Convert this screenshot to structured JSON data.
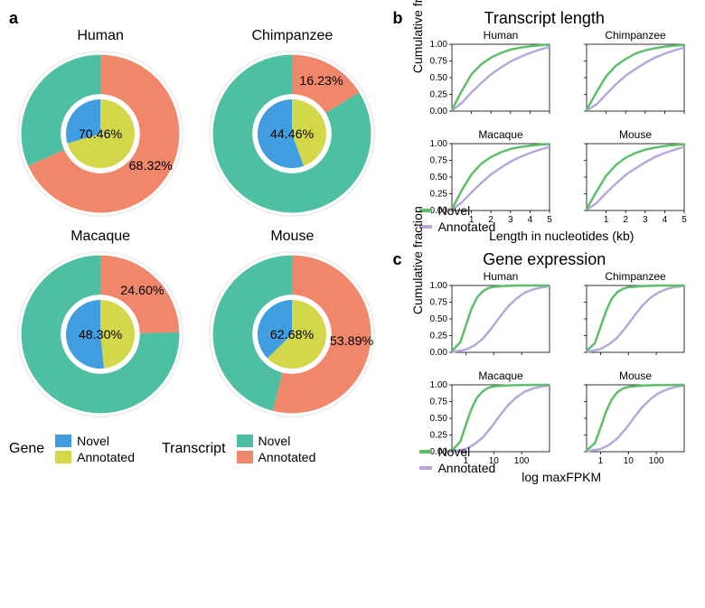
{
  "colors": {
    "gene_novel": "#3f9de0",
    "gene_annotated": "#d3d84a",
    "transcript_novel": "#4fbfa2",
    "transcript_annotated": "#f0866a",
    "novel_line": "#5dbf6a",
    "annotated_line": "#b8a8d6",
    "axis": "#000000",
    "grid": "#e0e0e0",
    "ring": "#eeeeee"
  },
  "panel_a": {
    "label": "a",
    "species": [
      {
        "name": "Human",
        "gene_annotated_pct": 70.46,
        "transcript_annotated_pct": 68.32,
        "outer_label": "68.32%",
        "inner_label": "70.46%"
      },
      {
        "name": "Chimpanzee",
        "gene_annotated_pct": 44.46,
        "transcript_annotated_pct": 16.23,
        "outer_label": "16.23%",
        "inner_label": "44.46%"
      },
      {
        "name": "Macaque",
        "gene_annotated_pct": 48.3,
        "transcript_annotated_pct": 24.6,
        "outer_label": "24.60%",
        "inner_label": "48.30%"
      },
      {
        "name": "Mouse",
        "gene_annotated_pct": 62.68,
        "transcript_annotated_pct": 53.89,
        "outer_label": "53.89%",
        "inner_label": "62.68%"
      }
    ],
    "legend": {
      "gene_label": "Gene",
      "transcript_label": "Transcript",
      "novel": "Novel",
      "annotated": "Annotated"
    }
  },
  "panel_b": {
    "label": "b",
    "title": "Transcript length",
    "ylabel": "Cumulative fraction",
    "xlabel": "Length in nucleotides (kb)",
    "xticks": [
      1,
      2,
      3,
      4,
      5
    ],
    "yticks": [
      0.0,
      0.25,
      0.5,
      0.75,
      1.0
    ],
    "xlim": [
      0,
      5
    ],
    "ylim": [
      0,
      1
    ],
    "line_width": 2.5,
    "legend": {
      "novel": "Novel",
      "annotated": "Annotated"
    },
    "panels": [
      {
        "name": "Human",
        "novel": [
          [
            0,
            0.02
          ],
          [
            0.5,
            0.3
          ],
          [
            1,
            0.55
          ],
          [
            1.5,
            0.7
          ],
          [
            2,
            0.8
          ],
          [
            2.5,
            0.87
          ],
          [
            3,
            0.92
          ],
          [
            3.5,
            0.95
          ],
          [
            4,
            0.97
          ],
          [
            4.5,
            0.985
          ],
          [
            5,
            0.995
          ]
        ],
        "annotated": [
          [
            0,
            0.01
          ],
          [
            0.5,
            0.12
          ],
          [
            1,
            0.28
          ],
          [
            1.5,
            0.42
          ],
          [
            2,
            0.55
          ],
          [
            2.5,
            0.65
          ],
          [
            3,
            0.74
          ],
          [
            3.5,
            0.81
          ],
          [
            4,
            0.87
          ],
          [
            4.5,
            0.92
          ],
          [
            5,
            0.96
          ]
        ]
      },
      {
        "name": "Chimpanzee",
        "novel": [
          [
            0,
            0.02
          ],
          [
            0.5,
            0.28
          ],
          [
            1,
            0.52
          ],
          [
            1.5,
            0.68
          ],
          [
            2,
            0.78
          ],
          [
            2.5,
            0.86
          ],
          [
            3,
            0.91
          ],
          [
            3.5,
            0.94
          ],
          [
            4,
            0.965
          ],
          [
            4.5,
            0.98
          ],
          [
            5,
            0.99
          ]
        ],
        "annotated": [
          [
            0,
            0.01
          ],
          [
            0.5,
            0.1
          ],
          [
            1,
            0.25
          ],
          [
            1.5,
            0.4
          ],
          [
            2,
            0.53
          ],
          [
            2.5,
            0.63
          ],
          [
            3,
            0.72
          ],
          [
            3.5,
            0.8
          ],
          [
            4,
            0.86
          ],
          [
            4.5,
            0.91
          ],
          [
            5,
            0.95
          ]
        ]
      },
      {
        "name": "Macaque",
        "novel": [
          [
            0,
            0.02
          ],
          [
            0.5,
            0.3
          ],
          [
            1,
            0.54
          ],
          [
            1.5,
            0.7
          ],
          [
            2,
            0.8
          ],
          [
            2.5,
            0.87
          ],
          [
            3,
            0.92
          ],
          [
            3.5,
            0.95
          ],
          [
            4,
            0.97
          ],
          [
            4.5,
            0.985
          ],
          [
            5,
            0.995
          ]
        ],
        "annotated": [
          [
            0,
            0.01
          ],
          [
            0.5,
            0.12
          ],
          [
            1,
            0.27
          ],
          [
            1.5,
            0.41
          ],
          [
            2,
            0.54
          ],
          [
            2.5,
            0.64
          ],
          [
            3,
            0.73
          ],
          [
            3.5,
            0.8
          ],
          [
            4,
            0.86
          ],
          [
            4.5,
            0.91
          ],
          [
            5,
            0.95
          ]
        ]
      },
      {
        "name": "Mouse",
        "novel": [
          [
            0,
            0.02
          ],
          [
            0.5,
            0.28
          ],
          [
            1,
            0.52
          ],
          [
            1.5,
            0.68
          ],
          [
            2,
            0.79
          ],
          [
            2.5,
            0.86
          ],
          [
            3,
            0.91
          ],
          [
            3.5,
            0.94
          ],
          [
            4,
            0.965
          ],
          [
            4.5,
            0.98
          ],
          [
            5,
            0.99
          ]
        ],
        "annotated": [
          [
            0,
            0.01
          ],
          [
            0.5,
            0.11
          ],
          [
            1,
            0.26
          ],
          [
            1.5,
            0.4
          ],
          [
            2,
            0.53
          ],
          [
            2.5,
            0.63
          ],
          [
            3,
            0.72
          ],
          [
            3.5,
            0.8
          ],
          [
            4,
            0.86
          ],
          [
            4.5,
            0.91
          ],
          [
            5,
            0.95
          ]
        ]
      }
    ]
  },
  "panel_c": {
    "label": "c",
    "title": "Gene expression",
    "ylabel": "Cumulative fraction",
    "xlabel": "log maxFPKM",
    "xticks": [
      1,
      10,
      100
    ],
    "yticks": [
      0.0,
      0.25,
      0.5,
      0.75,
      1.0
    ],
    "xlim_log": [
      -0.5,
      3
    ],
    "ylim": [
      0,
      1
    ],
    "line_width": 2.5,
    "legend": {
      "novel": "Novel",
      "annotated": "Annotated"
    },
    "panels": [
      {
        "name": "Human",
        "novel": [
          [
            -0.5,
            0.02
          ],
          [
            -0.2,
            0.15
          ],
          [
            0,
            0.4
          ],
          [
            0.2,
            0.65
          ],
          [
            0.4,
            0.82
          ],
          [
            0.6,
            0.91
          ],
          [
            0.8,
            0.96
          ],
          [
            1,
            0.98
          ],
          [
            1.5,
            0.995
          ],
          [
            2,
            1.0
          ],
          [
            3,
            1.0
          ]
        ],
        "annotated": [
          [
            -0.5,
            0.005
          ],
          [
            0,
            0.04
          ],
          [
            0.3,
            0.1
          ],
          [
            0.6,
            0.2
          ],
          [
            0.9,
            0.35
          ],
          [
            1.2,
            0.52
          ],
          [
            1.5,
            0.68
          ],
          [
            1.8,
            0.8
          ],
          [
            2.1,
            0.89
          ],
          [
            2.4,
            0.94
          ],
          [
            2.7,
            0.97
          ],
          [
            3,
            0.99
          ]
        ]
      },
      {
        "name": "Chimpanzee",
        "novel": [
          [
            -0.5,
            0.02
          ],
          [
            -0.2,
            0.14
          ],
          [
            0,
            0.38
          ],
          [
            0.2,
            0.62
          ],
          [
            0.4,
            0.8
          ],
          [
            0.6,
            0.9
          ],
          [
            0.8,
            0.95
          ],
          [
            1,
            0.975
          ],
          [
            1.5,
            0.99
          ],
          [
            2,
            0.998
          ],
          [
            3,
            1.0
          ]
        ],
        "annotated": [
          [
            -0.5,
            0.005
          ],
          [
            0,
            0.05
          ],
          [
            0.3,
            0.12
          ],
          [
            0.6,
            0.22
          ],
          [
            0.9,
            0.37
          ],
          [
            1.2,
            0.54
          ],
          [
            1.5,
            0.7
          ],
          [
            1.8,
            0.82
          ],
          [
            2.1,
            0.9
          ],
          [
            2.4,
            0.95
          ],
          [
            2.7,
            0.98
          ],
          [
            3,
            0.995
          ]
        ]
      },
      {
        "name": "Macaque",
        "novel": [
          [
            -0.5,
            0.02
          ],
          [
            -0.2,
            0.15
          ],
          [
            0,
            0.4
          ],
          [
            0.2,
            0.64
          ],
          [
            0.4,
            0.81
          ],
          [
            0.6,
            0.9
          ],
          [
            0.8,
            0.955
          ],
          [
            1,
            0.978
          ],
          [
            1.5,
            0.992
          ],
          [
            2,
            0.998
          ],
          [
            3,
            1.0
          ]
        ],
        "annotated": [
          [
            -0.5,
            0.005
          ],
          [
            0,
            0.04
          ],
          [
            0.3,
            0.11
          ],
          [
            0.6,
            0.21
          ],
          [
            0.9,
            0.36
          ],
          [
            1.2,
            0.53
          ],
          [
            1.5,
            0.69
          ],
          [
            1.8,
            0.81
          ],
          [
            2.1,
            0.895
          ],
          [
            2.4,
            0.945
          ],
          [
            2.7,
            0.975
          ],
          [
            3,
            0.99
          ]
        ]
      },
      {
        "name": "Mouse",
        "novel": [
          [
            -0.5,
            0.02
          ],
          [
            -0.2,
            0.13
          ],
          [
            0,
            0.36
          ],
          [
            0.2,
            0.6
          ],
          [
            0.4,
            0.78
          ],
          [
            0.6,
            0.89
          ],
          [
            0.8,
            0.945
          ],
          [
            1,
            0.97
          ],
          [
            1.5,
            0.99
          ],
          [
            2,
            0.997
          ],
          [
            3,
            1.0
          ]
        ],
        "annotated": [
          [
            -0.5,
            0.005
          ],
          [
            0,
            0.04
          ],
          [
            0.3,
            0.1
          ],
          [
            0.6,
            0.2
          ],
          [
            0.9,
            0.34
          ],
          [
            1.2,
            0.51
          ],
          [
            1.5,
            0.67
          ],
          [
            1.8,
            0.79
          ],
          [
            2.1,
            0.88
          ],
          [
            2.4,
            0.935
          ],
          [
            2.7,
            0.97
          ],
          [
            3,
            0.99
          ]
        ]
      }
    ]
  }
}
